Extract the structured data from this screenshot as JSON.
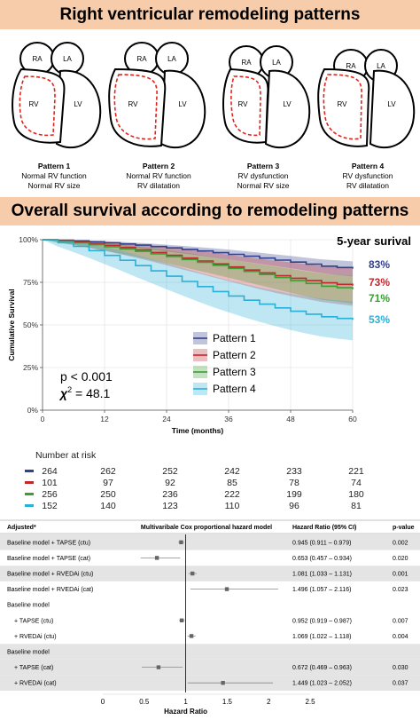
{
  "title_top": "Right ventricular remodeling patterns",
  "title_survival": "Overall survival according to remodeling patterns",
  "patterns": [
    {
      "chambers": [
        "RA",
        "LA",
        "RV",
        "LV"
      ],
      "name": "Pattern 1",
      "line1": "Normal RV function",
      "line2": "Normal RV size"
    },
    {
      "chambers": [
        "RA",
        "LA",
        "RV",
        "LV"
      ],
      "name": "Pattern 2",
      "line1": "Normal RV function",
      "line2": "RV dilatation"
    },
    {
      "chambers": [
        "RA",
        "LA",
        "RV",
        "LV"
      ],
      "name": "Pattern 3",
      "line1": "RV dysfunction",
      "line2": "Normal RV size"
    },
    {
      "chambers": [
        "RA",
        "LA",
        "RV",
        "LV"
      ],
      "name": "Pattern 4",
      "line1": "RV dysfunction",
      "line2": "RV dilatation"
    }
  ],
  "colors": {
    "pattern1": "#33408c",
    "pattern2": "#c1272d",
    "pattern3": "#3a9e33",
    "pattern4": "#2bb0d8",
    "dashed": "#e0241b",
    "banner": "#f6ccab"
  },
  "stats": {
    "p_text": "p < 0.001",
    "chi_symbol": "χ",
    "chi_sup": "2",
    "chi_value": "= 48.1"
  },
  "chart_data": {
    "type": "line",
    "title": "5-year surival",
    "xlabel": "Time (months)",
    "ylabel": "Cumulative Survival",
    "xlim": [
      0,
      60
    ],
    "ylim": [
      0,
      100
    ],
    "x_ticks": [
      0,
      12,
      24,
      36,
      48,
      60
    ],
    "y_ticks": [
      "0%",
      "25%",
      "50%",
      "75%",
      "100%"
    ],
    "y_tick_values": [
      0,
      25,
      50,
      75,
      100
    ],
    "legend_position": "bottom-center",
    "series": [
      {
        "name": "Pattern 1",
        "color": "#33408c",
        "label": "83%",
        "x": [
          0,
          3,
          6,
          9,
          12,
          15,
          18,
          21,
          24,
          27,
          30,
          33,
          36,
          39,
          42,
          45,
          48,
          51,
          54,
          57,
          60
        ],
        "y": [
          100,
          99.7,
          99.3,
          98.8,
          98.2,
          97.5,
          96.8,
          96.0,
          95.2,
          94.3,
          93.4,
          92.4,
          91.4,
          90.3,
          89.2,
          88.0,
          86.9,
          85.7,
          84.5,
          83.7,
          83.0
        ],
        "lower": [
          100,
          99.3,
          98.7,
          97.9,
          97.1,
          96.2,
          95.2,
          94.2,
          93.1,
          92.0,
          90.9,
          89.7,
          88.5,
          87.2,
          85.9,
          84.5,
          83.2,
          81.8,
          80.4,
          79.4,
          78.5
        ],
        "upper": [
          100,
          100,
          99.8,
          99.5,
          99.2,
          98.8,
          98.3,
          97.7,
          97.1,
          96.4,
          95.7,
          95.0,
          94.2,
          93.3,
          92.4,
          91.4,
          90.5,
          89.5,
          88.5,
          87.9,
          87.3
        ]
      },
      {
        "name": "Pattern 2",
        "color": "#c1272d",
        "label": "73%",
        "x": [
          0,
          3,
          6,
          9,
          12,
          15,
          18,
          21,
          24,
          27,
          30,
          33,
          36,
          39,
          42,
          45,
          48,
          51,
          54,
          57,
          60
        ],
        "y": [
          100,
          99.4,
          98.6,
          97.7,
          96.6,
          95.4,
          94.0,
          92.5,
          90.9,
          89.2,
          87.5,
          85.8,
          84.0,
          82.2,
          80.5,
          78.9,
          77.4,
          76.0,
          74.7,
          73.8,
          73.0
        ],
        "lower": [
          100,
          98.5,
          97.0,
          95.3,
          93.5,
          91.5,
          89.5,
          87.3,
          85.0,
          82.6,
          80.3,
          78.0,
          75.6,
          73.3,
          71.0,
          68.9,
          67.0,
          65.2,
          63.5,
          62.3,
          61.2
        ],
        "upper": [
          100,
          100,
          99.8,
          99.4,
          98.9,
          98.3,
          97.5,
          96.6,
          95.6,
          94.6,
          93.5,
          92.4,
          91.2,
          90.0,
          88.8,
          87.7,
          86.7,
          85.7,
          84.8,
          84.1,
          83.5
        ]
      },
      {
        "name": "Pattern 3",
        "color": "#3a9e33",
        "label": "71%",
        "x": [
          0,
          3,
          6,
          9,
          12,
          15,
          18,
          21,
          24,
          27,
          30,
          33,
          36,
          39,
          42,
          45,
          48,
          51,
          54,
          57,
          60
        ],
        "y": [
          100,
          99.2,
          98.2,
          97.1,
          95.9,
          94.6,
          93.2,
          91.7,
          90.1,
          88.4,
          86.7,
          85.0,
          83.2,
          81.4,
          79.6,
          77.8,
          76.0,
          74.3,
          72.7,
          71.8,
          71.0
        ],
        "lower": [
          100,
          98.2,
          96.8,
          95.2,
          93.6,
          91.9,
          90.1,
          88.2,
          86.2,
          84.1,
          82.0,
          79.9,
          77.7,
          75.5,
          73.3,
          71.1,
          68.9,
          66.8,
          64.8,
          63.7,
          62.5
        ],
        "upper": [
          100,
          100,
          99.5,
          98.9,
          98.1,
          97.2,
          96.2,
          95.1,
          93.9,
          92.6,
          91.3,
          89.9,
          88.5,
          87.1,
          85.7,
          84.3,
          82.9,
          81.5,
          80.2,
          79.5,
          78.9
        ]
      },
      {
        "name": "Pattern 4",
        "color": "#2bb0d8",
        "label": "53%",
        "x": [
          0,
          3,
          6,
          9,
          12,
          15,
          18,
          21,
          24,
          27,
          30,
          33,
          36,
          39,
          42,
          45,
          48,
          51,
          54,
          57,
          60
        ],
        "y": [
          100,
          98.3,
          96.1,
          93.6,
          90.8,
          87.9,
          84.8,
          81.7,
          78.6,
          75.5,
          72.5,
          69.6,
          67.0,
          64.5,
          62.2,
          60.0,
          58.0,
          56.3,
          54.8,
          53.8,
          53.0
        ],
        "lower": [
          100,
          96.0,
          92.7,
          89.3,
          85.7,
          82.1,
          78.3,
          74.6,
          70.9,
          67.3,
          63.8,
          60.4,
          57.4,
          54.5,
          51.8,
          49.3,
          47.0,
          45.0,
          43.2,
          42.0,
          41.0
        ],
        "upper": [
          100,
          99.8,
          99.0,
          97.6,
          95.8,
          93.6,
          91.2,
          88.7,
          86.2,
          83.6,
          81.0,
          78.5,
          76.2,
          74.0,
          72.0,
          70.1,
          68.3,
          66.8,
          65.4,
          64.5,
          63.8
        ]
      }
    ]
  },
  "risk_table": {
    "title": "Number at risk",
    "rows": [
      {
        "color": "#33408c",
        "values": [
          "264",
          "262",
          "252",
          "242",
          "233",
          "221"
        ]
      },
      {
        "color": "#c1272d",
        "values": [
          "101",
          "97",
          "92",
          "85",
          "78",
          "74"
        ]
      },
      {
        "color": "#3a9e33",
        "values": [
          "256",
          "250",
          "236",
          "222",
          "199",
          "180"
        ]
      },
      {
        "color": "#2bb0d8",
        "values": [
          "152",
          "140",
          "123",
          "110",
          "96",
          "81"
        ]
      }
    ]
  },
  "forest": {
    "header_adjusted": "Adjusted*",
    "header_model": "Multivaribale Cox proportional hazard model",
    "header_hr": "Hazard Ratio (95% CI)",
    "header_p": "p-value",
    "xlabel": "Hazard Ratio",
    "x_ticks": [
      "0",
      "0.5",
      "1",
      "1.5",
      "2",
      "2.5"
    ],
    "x_tick_values": [
      0,
      0.5,
      1,
      1.5,
      2,
      2.5
    ],
    "rows": [
      {
        "label": "Baseline model + TAPSE (ctu)",
        "hr_text": "0.945 (0.911 – 0.979)",
        "p": "0.002",
        "hr": 0.945,
        "lo": 0.911,
        "hi": 0.979
      },
      {
        "label": "Baseline model + TAPSE (cat)",
        "hr_text": "0.653 (0.457 – 0.934)",
        "p": "0.020",
        "hr": 0.653,
        "lo": 0.457,
        "hi": 0.934
      },
      {
        "label": "Baseline model + RVEDAi (ctu)",
        "hr_text": "1.081 (1.033 – 1.131)",
        "p": "0.001",
        "hr": 1.081,
        "lo": 1.033,
        "hi": 1.131
      },
      {
        "label": "Baseline model + RVEDAi (cat)",
        "hr_text": "1.496 (1.057 – 2.116)",
        "p": "0.023",
        "hr": 1.496,
        "lo": 1.057,
        "hi": 2.116
      },
      {
        "label": "Baseline model"
      },
      {
        "label": "+ TAPSE (ctu)",
        "hr_text": "0.952 (0.919 – 0.987)",
        "p": "0.007",
        "hr": 0.952,
        "lo": 0.919,
        "hi": 0.987
      },
      {
        "label": "+ RVEDAi (ctu)",
        "hr_text": "1.069 (1.022 – 1.118)",
        "p": "0.004",
        "hr": 1.069,
        "lo": 1.022,
        "hi": 1.118
      },
      {
        "label": "Baseline model"
      },
      {
        "label": "+ TAPSE (cat)",
        "hr_text": "0.672 (0.469 – 0.963)",
        "p": "0.030",
        "hr": 0.672,
        "lo": 0.469,
        "hi": 0.963
      },
      {
        "label": "+ RVEDAi (cat)",
        "hr_text": "1.449 (1.023 – 2.052)",
        "p": "0.037",
        "hr": 1.449,
        "lo": 1.023,
        "hi": 2.052
      }
    ]
  }
}
